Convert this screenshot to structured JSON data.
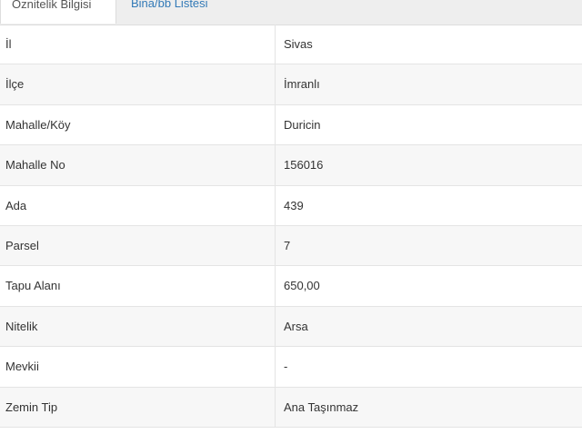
{
  "tabs": [
    "Öznitelik Bilgisi",
    "Bina/bb Listesi"
  ],
  "table": {
    "rows": [
      [
        "İl",
        "Sivas"
      ],
      [
        "İlçe",
        "İmranlı"
      ],
      [
        "Mahalle/Köy",
        "Duricin"
      ],
      [
        "Mahalle No",
        "156016"
      ],
      [
        "Ada",
        "439"
      ],
      [
        "Parsel",
        "7"
      ],
      [
        "Tapu Alanı",
        "650,00"
      ],
      [
        "Nitelik",
        "Arsa"
      ],
      [
        "Mevkii",
        "-"
      ],
      [
        "Zemin Tip",
        "Ana Taşınmaz"
      ]
    ]
  }
}
